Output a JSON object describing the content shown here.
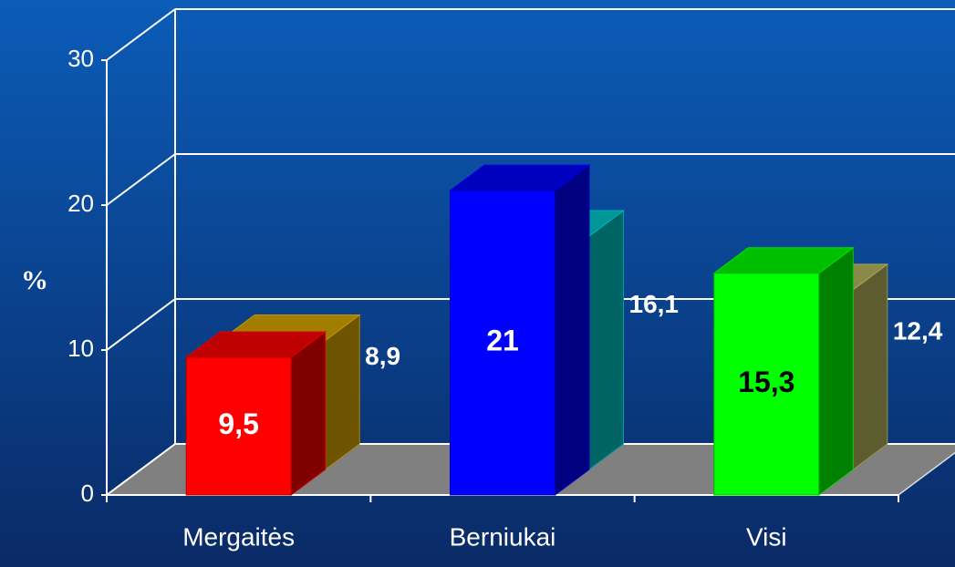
{
  "chart_data": {
    "type": "bar3d",
    "y_label": "%",
    "categories": [
      "Mergaitės",
      "Berniukai",
      "Visi"
    ],
    "series": [
      {
        "colors": [
          "#ff0000",
          "#0000ff",
          "#00ff00"
        ],
        "label_colors": [
          "#ffffff",
          "#ffffff",
          "#000000"
        ],
        "values": [
          9.5,
          21,
          15.3
        ],
        "value_labels": [
          "9,5",
          "21",
          "15,3"
        ]
      },
      {
        "colors": [
          "#d8a800",
          "#00c8c8",
          "#b8b860"
        ],
        "label_colors": [
          "#ffffff",
          "#ffffff",
          "#ffffff"
        ],
        "values": [
          8.9,
          16.1,
          12.4
        ],
        "value_labels": [
          "8,9",
          "16,1",
          "12,4"
        ]
      }
    ],
    "ylim": [
      0,
      30
    ],
    "yticks": [
      0,
      10,
      20,
      30
    ],
    "grid": true
  }
}
